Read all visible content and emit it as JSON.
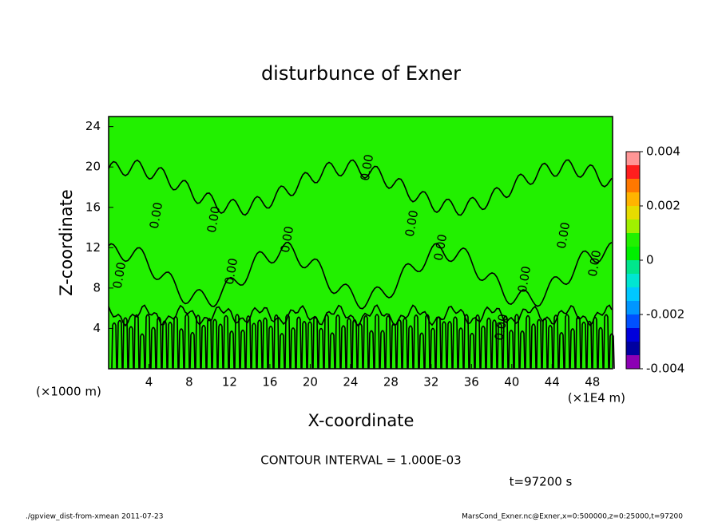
{
  "chart_data": {
    "type": "contour",
    "title": "disturbunce of Exner",
    "x_label": "X-coordinate",
    "y_label": "Z-coordinate",
    "x_unit": "(×1E4 m)",
    "y_unit": "(×1000 m)",
    "xlim": [
      0,
      50
    ],
    "xticks": [
      4,
      8,
      12,
      16,
      20,
      24,
      28,
      32,
      36,
      40,
      44,
      48
    ],
    "ylim": [
      0,
      25
    ],
    "yticks": [
      4,
      8,
      12,
      16,
      20,
      24
    ],
    "fill_color": "#22f000",
    "contour_color": "#000000",
    "contour_label": "0.00",
    "colorbar": {
      "lim": [
        -0.004,
        0.004
      ],
      "ticks": [
        -0.004,
        -0.002,
        0,
        0.002,
        0.004
      ],
      "colors": [
        "#8c00b4",
        "#0000a0",
        "#0000dc",
        "#0050ff",
        "#0096ff",
        "#00c8ff",
        "#00e6d2",
        "#00e68c",
        "#00f000",
        "#22f000",
        "#a0f000",
        "#e6dc00",
        "#ffb400",
        "#ff7800",
        "#ff1e1e",
        "#ff9696"
      ]
    },
    "contour_interval": "CONTOUR INTERVAL = 1.000E-03",
    "time": "t=97200 s",
    "footer_left": "./gpview_dist-from-xmean  2011-07-23",
    "footer_right": "MarsCond_Exner.nc@Exner,x=0:500000,z=0:25000,t=97200"
  }
}
